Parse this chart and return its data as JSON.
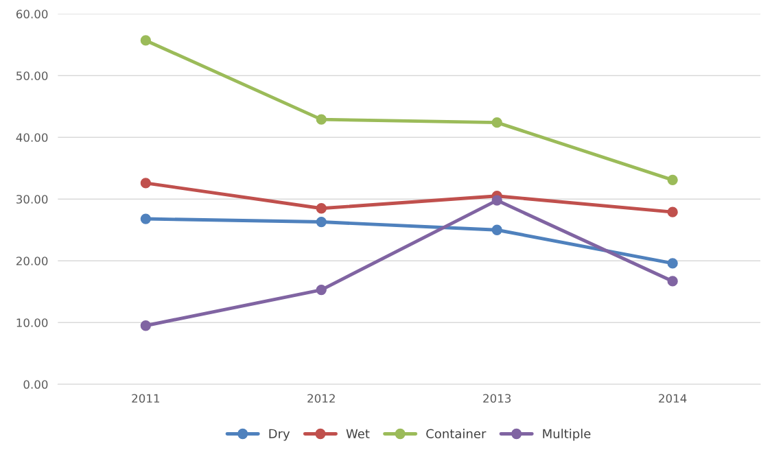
{
  "chart_data": {
    "type": "line",
    "categories": [
      "2011",
      "2012",
      "2013",
      "2014"
    ],
    "series": [
      {
        "name": "Dry",
        "color": "#4f81bd",
        "values": [
          26.8,
          26.3,
          25.0,
          19.6
        ]
      },
      {
        "name": "Wet",
        "color": "#c0504d",
        "values": [
          32.6,
          28.5,
          30.5,
          27.9
        ]
      },
      {
        "name": "Container",
        "color": "#9bbb59",
        "values": [
          55.7,
          42.9,
          42.4,
          33.1
        ]
      },
      {
        "name": "Multiple",
        "color": "#8064a2",
        "values": [
          9.5,
          15.3,
          29.8,
          16.7
        ]
      }
    ],
    "ylim": [
      0,
      60
    ],
    "yticks": [
      {
        "value": 0,
        "label": "0.00"
      },
      {
        "value": 10,
        "label": "10.00"
      },
      {
        "value": 20,
        "label": "20.00"
      },
      {
        "value": 30,
        "label": "30.00"
      },
      {
        "value": 40,
        "label": "40.00"
      },
      {
        "value": 50,
        "label": "50.00"
      },
      {
        "value": 60,
        "label": "60.00"
      }
    ],
    "grid": "y",
    "legend": "bottom",
    "marker": "circle",
    "line_style": "solid"
  }
}
